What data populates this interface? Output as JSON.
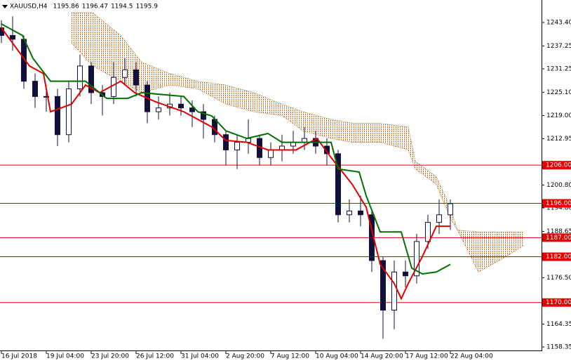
{
  "chart_data": {
    "type": "candlestick",
    "symbol": "XAUUSD,H4",
    "last_ohlc": [
      1195.86,
      1196.47,
      1194.5,
      1195.9
    ],
    "xlim": [
      0,
      193
    ],
    "ylim": [
      1157.25,
      1249.29
    ],
    "xticks": [
      {
        "value": 0,
        "label": "16 Jul 2018"
      },
      {
        "value": 16,
        "label": "19 Jul 04:00"
      },
      {
        "value": 32,
        "label": "23 Jul 20:00"
      },
      {
        "value": 48,
        "label": "26 Jul 12:00"
      },
      {
        "value": 64,
        "label": "31 Jul 04:00"
      },
      {
        "value": 80,
        "label": "2 Aug 20:00"
      },
      {
        "value": 96,
        "label": "7 Aug 12:00"
      },
      {
        "value": 112,
        "label": "10 Aug 04:00"
      },
      {
        "value": 128,
        "label": "14 Aug 20:00"
      },
      {
        "value": 144,
        "label": "17 Aug 12:00"
      },
      {
        "value": 160,
        "label": "22 Aug 04:00"
      }
    ],
    "yticks": [
      {
        "value": 1243.4,
        "label": "1243.40"
      },
      1237.25,
      1231.25,
      {
        "value": 1225.1,
        "label": "1225.10"
      },
      {
        "value": 1219,
        "label": "1219.00"
      },
      1212.95,
      {
        "value": 1200.8,
        "label": "1200.80"
      },
      {
        "value": 1194.8,
        "label": "1194.80"
      },
      1188.65,
      {
        "value": 1176.5,
        "label": "1176.50"
      },
      1164.35,
      1158.35
    ],
    "levels": [
      {
        "value": 1206,
        "label": "1206.00"
      },
      {
        "value": 1196,
        "label": "1196.00"
      },
      {
        "value": 1187,
        "label": "1187.00"
      },
      {
        "value": 1182,
        "label": "1182.00"
      },
      {
        "value": 1170,
        "label": "1170.00"
      }
    ],
    "level_color": "#e00000",
    "candle_color": "#10103a",
    "candles": {
      "x": [
        0,
        4,
        8,
        12,
        16,
        20,
        24,
        28,
        32,
        36,
        40,
        44,
        48,
        52,
        56,
        60,
        64,
        68,
        72,
        76,
        80,
        84,
        88,
        92,
        96,
        100,
        104,
        108,
        112,
        116,
        120,
        124,
        128,
        132,
        136,
        140,
        144,
        148,
        152,
        156,
        160
      ],
      "open": [
        1242,
        1240,
        1239,
        1228,
        1224,
        1224,
        1214,
        1226,
        1232,
        1225,
        1224,
        1229,
        1231,
        1227,
        1220,
        1221,
        1222,
        1221,
        1220,
        1218,
        1214,
        1210,
        1212,
        1213,
        1208,
        1210,
        1211,
        1212,
        1213,
        1211,
        1209,
        1193,
        1194,
        1193,
        1181,
        1168,
        1178,
        1177,
        1186,
        1191,
        1193
      ],
      "high": [
        1244,
        1245,
        1240,
        1230,
        1227,
        1226,
        1228,
        1235,
        1233,
        1227,
        1233,
        1234,
        1233,
        1228,
        1224,
        1225,
        1224,
        1223,
        1222,
        1219,
        1215,
        1214,
        1218,
        1214,
        1212,
        1214,
        1215,
        1216,
        1215,
        1213,
        1210,
        1197,
        1198,
        1194,
        1182,
        1181,
        1181,
        1188,
        1193,
        1197,
        1197
      ],
      "low": [
        1238,
        1236,
        1226,
        1221,
        1220,
        1211,
        1212,
        1224,
        1222,
        1219,
        1222,
        1227,
        1224,
        1217,
        1218,
        1219,
        1219,
        1216,
        1213,
        1212,
        1206,
        1205,
        1209,
        1206,
        1206,
        1207,
        1209,
        1210,
        1209,
        1206,
        1191,
        1191,
        1190,
        1178,
        1160.5,
        1163,
        1174,
        1175,
        1184,
        1188,
        1189
      ],
      "close": [
        1240,
        1239,
        1228,
        1224,
        1224,
        1214,
        1226,
        1232,
        1225,
        1224,
        1229,
        1231,
        1227,
        1220,
        1221,
        1222,
        1221,
        1220,
        1218,
        1214,
        1210,
        1212,
        1213,
        1208,
        1210,
        1211,
        1212,
        1213,
        1211,
        1209,
        1193,
        1194,
        1193,
        1181,
        1168,
        1178,
        1177,
        1186,
        1191,
        1193,
        1195.9
      ]
    },
    "series": [
      {
        "color": "#e00000",
        "x": [
          0,
          10,
          15,
          17.5,
          25,
          30,
          35,
          42.5,
          47.5,
          55,
          65,
          75,
          80,
          87.5,
          95,
          105,
          112.5,
          117.5,
          125,
          130,
          135,
          140,
          142.5,
          145,
          150,
          155,
          160
        ],
        "values": [
          1242,
          1232,
          1230,
          1220,
          1222,
          1227,
          1225,
          1228,
          1225,
          1222.6,
          1220,
          1216,
          1212.5,
          1212,
          1210,
          1210,
          1213,
          1208,
          1201,
          1195,
          1180,
          1175,
          1171,
          1175,
          1182,
          1190,
          1190
        ]
      },
      {
        "color": "#007000",
        "x": [
          0,
          7.5,
          11.25,
          17.5,
          30,
          37.5,
          45,
          50,
          65,
          70,
          75,
          80,
          87.5,
          95,
          100,
          117.5,
          120,
          127.5,
          130,
          135,
          142.5,
          146.25,
          150,
          155,
          160
        ],
        "values": [
          1243,
          1240,
          1234,
          1228,
          1228,
          1223.5,
          1223.5,
          1225,
          1224,
          1220,
          1218.9,
          1215,
          1213,
          1214.3,
          1212,
          1212,
          1205,
          1204.2,
          1198,
          1188.5,
          1188.5,
          1179,
          1177.5,
          1178,
          1180
        ]
      }
    ],
    "cloud": {
      "fill": "#d2691e",
      "x": [
        25,
        32.5,
        42.5,
        50,
        60,
        70,
        80,
        90,
        100,
        107.5,
        117.5,
        125,
        135,
        145,
        147.5,
        155,
        160,
        162.5,
        170,
        177.5,
        186.25
      ],
      "span_a": {
        "color": "#5a8a3a",
        "values": [
          1246,
          1246,
          1240,
          1233,
          1230,
          1228,
          1227,
          1225,
          1222,
          1220,
          1218,
          1217,
          1217,
          1216,
          1207,
          1203,
          1195,
          1189,
          1188.5,
          1188.5,
          1188.5
        ]
      },
      "span_b": {
        "color": "#b5651d",
        "values": [
          1238,
          1232,
          1228,
          1225,
          1227,
          1226,
          1222,
          1220,
          1219,
          1215,
          1213,
          1212,
          1212,
          1210,
          1205,
          1201,
          1192,
          1189,
          1178,
          1181,
          1185
        ]
      }
    }
  }
}
